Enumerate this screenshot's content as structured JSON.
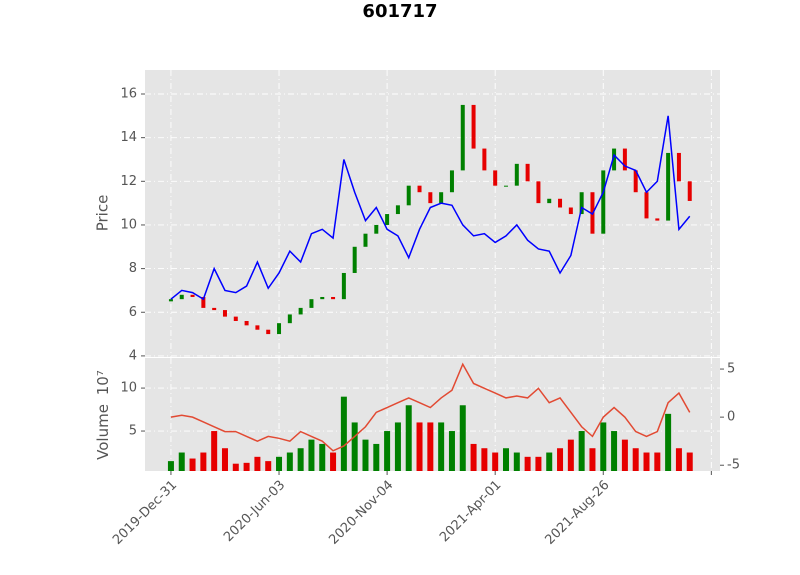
{
  "chart_data": [
    {
      "type": "candlestick",
      "title": "601717",
      "ylabel": "Price",
      "x": [
        0,
        10,
        20,
        30,
        40,
        50,
        60,
        70,
        80,
        90,
        100,
        110,
        120,
        130,
        140,
        150,
        160,
        170,
        180,
        190,
        200,
        210,
        220,
        230,
        240,
        250,
        260,
        270,
        280,
        290,
        300,
        310,
        320,
        330,
        340,
        350,
        360,
        370,
        380,
        390,
        400,
        410,
        420,
        430,
        440,
        450,
        460,
        470,
        480
      ],
      "open": [
        6.5,
        6.6,
        6.8,
        6.7,
        6.2,
        6.1,
        5.8,
        5.6,
        5.4,
        5.2,
        5.0,
        5.5,
        5.9,
        6.2,
        6.6,
        6.7,
        6.6,
        7.8,
        9.0,
        9.6,
        10.0,
        10.5,
        10.9,
        11.8,
        11.5,
        11.0,
        11.5,
        12.5,
        15.5,
        13.5,
        12.5,
        11.8,
        11.8,
        12.8,
        12.0,
        11.0,
        11.2,
        10.8,
        10.5,
        11.5,
        9.6,
        12.5,
        13.5,
        12.5,
        11.5,
        10.3,
        10.2,
        13.3,
        12.0
      ],
      "close": [
        6.6,
        6.8,
        6.7,
        6.2,
        6.1,
        5.8,
        5.6,
        5.4,
        5.2,
        5.0,
        5.5,
        5.9,
        6.2,
        6.6,
        6.7,
        6.6,
        7.8,
        9.0,
        9.6,
        10.0,
        10.5,
        10.9,
        11.8,
        11.5,
        11.0,
        11.5,
        12.5,
        15.5,
        13.5,
        12.5,
        11.8,
        11.8,
        12.8,
        12.0,
        11.0,
        11.2,
        10.8,
        10.5,
        11.5,
        9.6,
        12.5,
        13.5,
        12.5,
        11.5,
        10.3,
        10.2,
        13.3,
        12.0,
        11.1
      ],
      "up_color": "#008000",
      "down_color": "#e60000",
      "line_values": [
        6.6,
        7.0,
        6.9,
        6.6,
        8.0,
        7.0,
        6.9,
        7.2,
        8.3,
        7.1,
        7.8,
        8.8,
        8.3,
        9.6,
        9.8,
        9.4,
        13.0,
        11.5,
        10.2,
        10.8,
        9.8,
        9.5,
        8.5,
        9.8,
        10.8,
        11.0,
        10.9,
        10.0,
        9.5,
        9.6,
        9.2,
        9.5,
        10.0,
        9.3,
        8.9,
        8.8,
        7.8,
        8.6,
        10.8,
        10.5,
        11.5,
        13.2,
        12.7,
        12.5,
        11.5,
        12.0,
        15.0,
        9.8,
        10.4
      ],
      "line_color": "#0000ff",
      "xlim": [
        -24,
        508
      ],
      "ylim": [
        3.95,
        17.1
      ],
      "yticks": [
        4,
        6,
        8,
        10,
        12,
        14,
        16
      ],
      "grid": true
    },
    {
      "type": "bar",
      "ylabel": "Volume",
      "ylabel_scale": "10⁷",
      "values": [
        1.5,
        2.5,
        1.8,
        2.5,
        5,
        3,
        1.2,
        1.3,
        2.0,
        1.5,
        2.0,
        2.5,
        3,
        4,
        3.5,
        2.5,
        9,
        6,
        4,
        3.5,
        5,
        6,
        8,
        6,
        6,
        6,
        5,
        8,
        3.5,
        3,
        2.5,
        3,
        2.5,
        2,
        2,
        2.5,
        3,
        4,
        5,
        3,
        6,
        5,
        4,
        3,
        2.5,
        2.5,
        7,
        3,
        2.5
      ],
      "y2_values": [
        0,
        0.2,
        0,
        -0.5,
        -1,
        -1.5,
        -1.5,
        -2,
        -2.5,
        -2,
        -2.2,
        -2.5,
        -1.5,
        -2,
        -2.5,
        -3.5,
        -3,
        -2,
        -1,
        0.5,
        1,
        1.5,
        2,
        1.5,
        1,
        2,
        2.8,
        5.5,
        3.5,
        3,
        2.5,
        2,
        2.2,
        2,
        3,
        1.5,
        2,
        0.5,
        -1,
        -2,
        0,
        1,
        0,
        -1.5,
        -2,
        -1.5,
        1.5,
        2.5,
        0.5
      ],
      "y2_color": "#e24a33",
      "ylim": [
        0.35,
        13.5
      ],
      "yticks": [
        5,
        10
      ],
      "y2lim": [
        -5.6,
        6.15
      ],
      "y2ticks": [
        -5,
        0,
        5
      ],
      "xticks": [
        {
          "value": 0,
          "label": "2019-Dec-31"
        },
        {
          "value": 100,
          "label": "2020-Jun-03"
        },
        {
          "value": 200,
          "label": "2020-Nov-04"
        },
        {
          "value": 300,
          "label": "2021-Apr-01"
        },
        {
          "value": 400,
          "label": "2021-Aug-26"
        },
        {
          "value": 500,
          "label": null
        }
      ],
      "grid": true
    }
  ]
}
